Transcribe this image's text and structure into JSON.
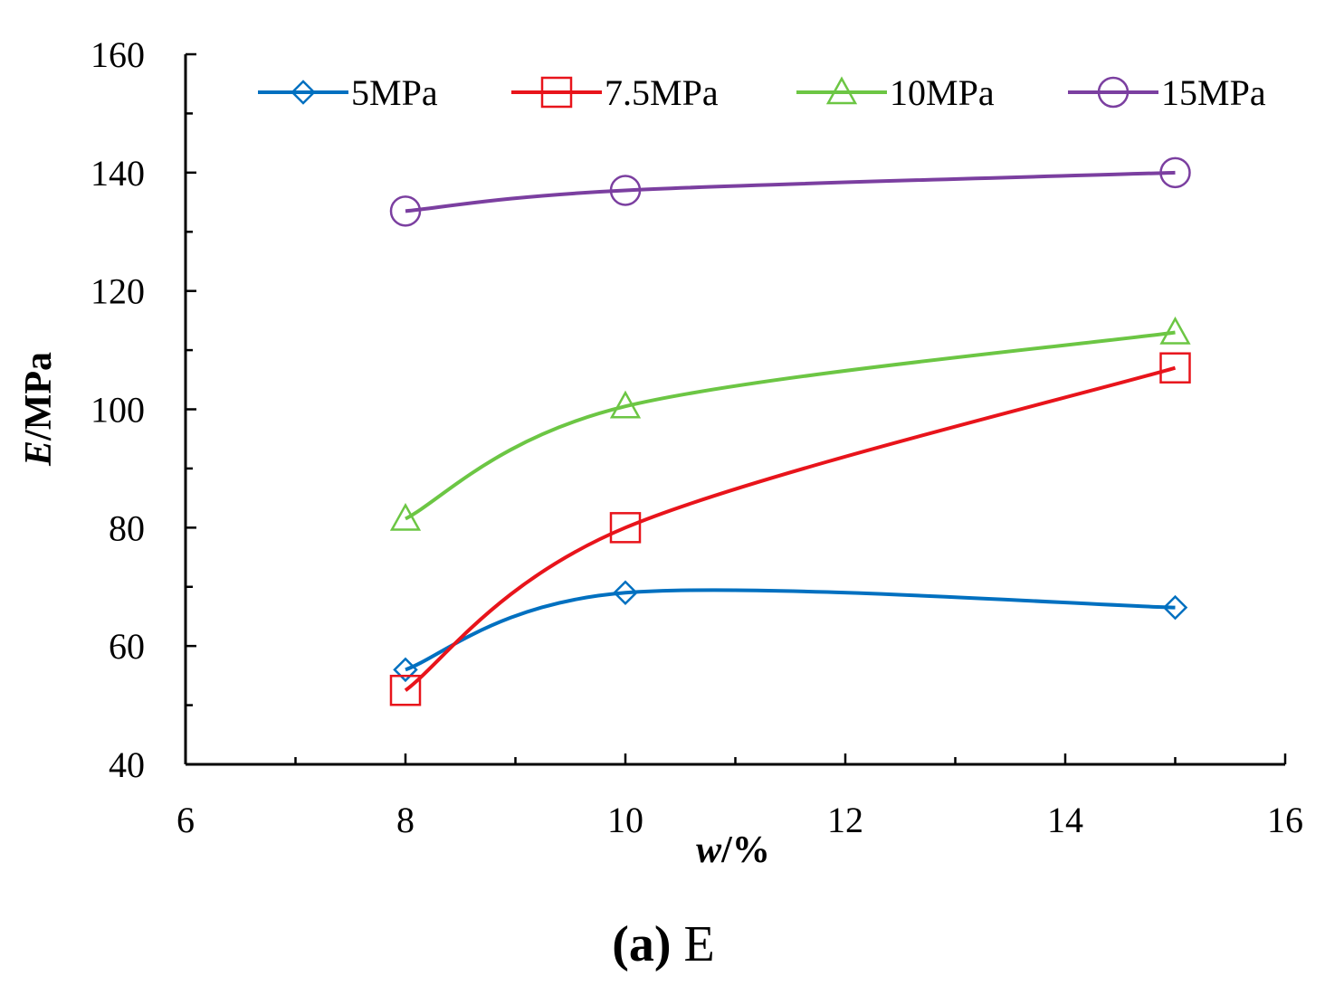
{
  "chart_data": {
    "type": "line",
    "xlabel_var": "w",
    "xlabel_unit": "/%",
    "ylabel_var": "E",
    "ylabel_unit": "/MPa",
    "xlim": [
      6,
      16
    ],
    "ylim": [
      40,
      160
    ],
    "xticks": [
      6,
      8,
      10,
      12,
      14,
      16
    ],
    "yticks": [
      40,
      60,
      80,
      100,
      120,
      140,
      160
    ],
    "grid": false,
    "legend_position": "top",
    "caption_letter": "(a)",
    "caption_text": "E",
    "series": [
      {
        "name": "5MPa",
        "color": "#0070C0",
        "marker": "diamond",
        "x": [
          8,
          10,
          15
        ],
        "y": [
          56,
          69,
          66.5
        ]
      },
      {
        "name": "7.5MPa",
        "color": "#E8141B",
        "marker": "square",
        "x": [
          8,
          10,
          15
        ],
        "y": [
          52.5,
          80,
          107
        ]
      },
      {
        "name": "10MPa",
        "color": "#6CC644",
        "marker": "triangle",
        "x": [
          8,
          10,
          15
        ],
        "y": [
          81.5,
          100.5,
          113
        ]
      },
      {
        "name": "15MPa",
        "color": "#7B3FA0",
        "marker": "circle",
        "x": [
          8,
          10,
          15
        ],
        "y": [
          133.5,
          137,
          140
        ]
      }
    ]
  }
}
